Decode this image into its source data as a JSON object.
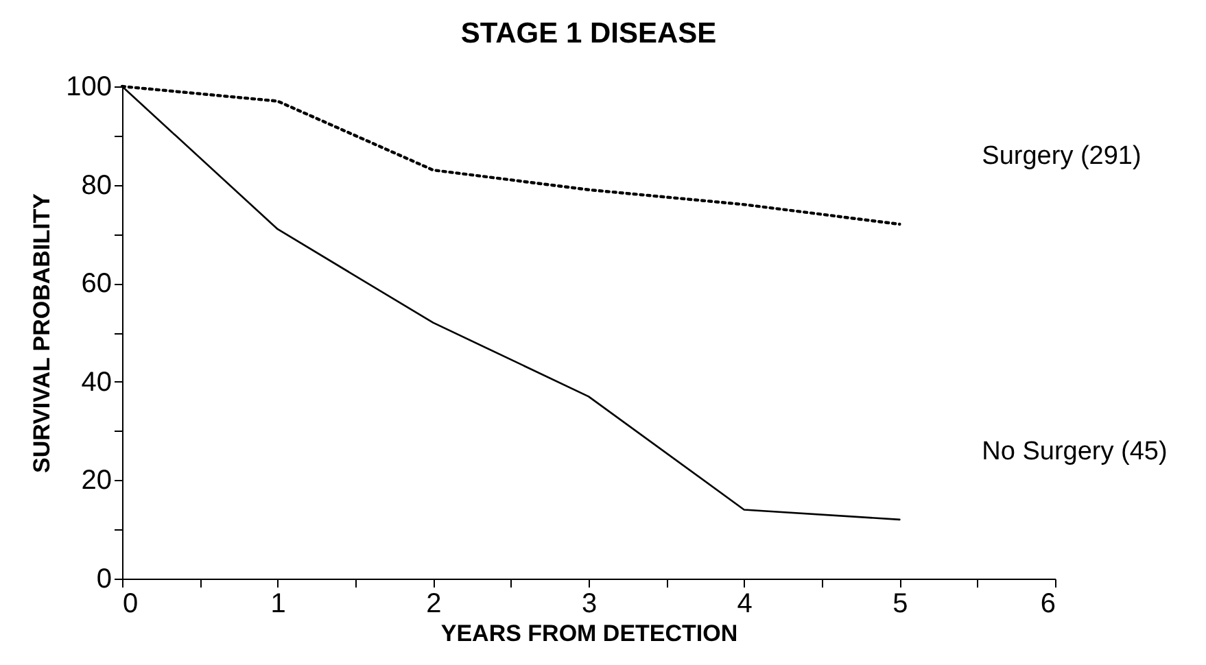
{
  "chart_data": {
    "type": "line",
    "title": "STAGE 1 DISEASE",
    "xlabel": "YEARS FROM DETECTION",
    "ylabel": "SURVIVAL PROBABILITY",
    "series": [
      {
        "name": "Surgery (291)",
        "color": "#000000",
        "line_style": "dotted",
        "x": [
          0,
          1,
          2,
          3,
          4,
          5
        ],
        "values": [
          100,
          97,
          83,
          79,
          76,
          72
        ]
      },
      {
        "name": "No Surgery (45)",
        "color": "#000000",
        "line_style": "solid",
        "x": [
          0,
          1,
          2,
          3,
          4,
          5
        ],
        "values": [
          100,
          71,
          52,
          37,
          14,
          12
        ]
      }
    ],
    "xlim": [
      0,
      6
    ],
    "ylim": [
      0,
      100
    ],
    "xticks": [
      0,
      {
        "value": 0.5,
        "label": null
      },
      1,
      {
        "value": 1.5,
        "label": null
      },
      2,
      {
        "value": 2.5,
        "label": null
      },
      3,
      {
        "value": 3.5,
        "label": null
      },
      4,
      {
        "value": 4.5,
        "label": null
      },
      5,
      {
        "value": 5.5,
        "label": null
      },
      6
    ],
    "yticks": [
      0,
      {
        "value": 10,
        "label": null
      },
      20,
      {
        "value": 30,
        "label": null
      },
      40,
      {
        "value": 50,
        "label": null
      },
      60,
      {
        "value": 70,
        "label": null
      },
      80,
      {
        "value": 90,
        "label": null
      },
      100
    ],
    "grid": false,
    "marker": "none"
  }
}
